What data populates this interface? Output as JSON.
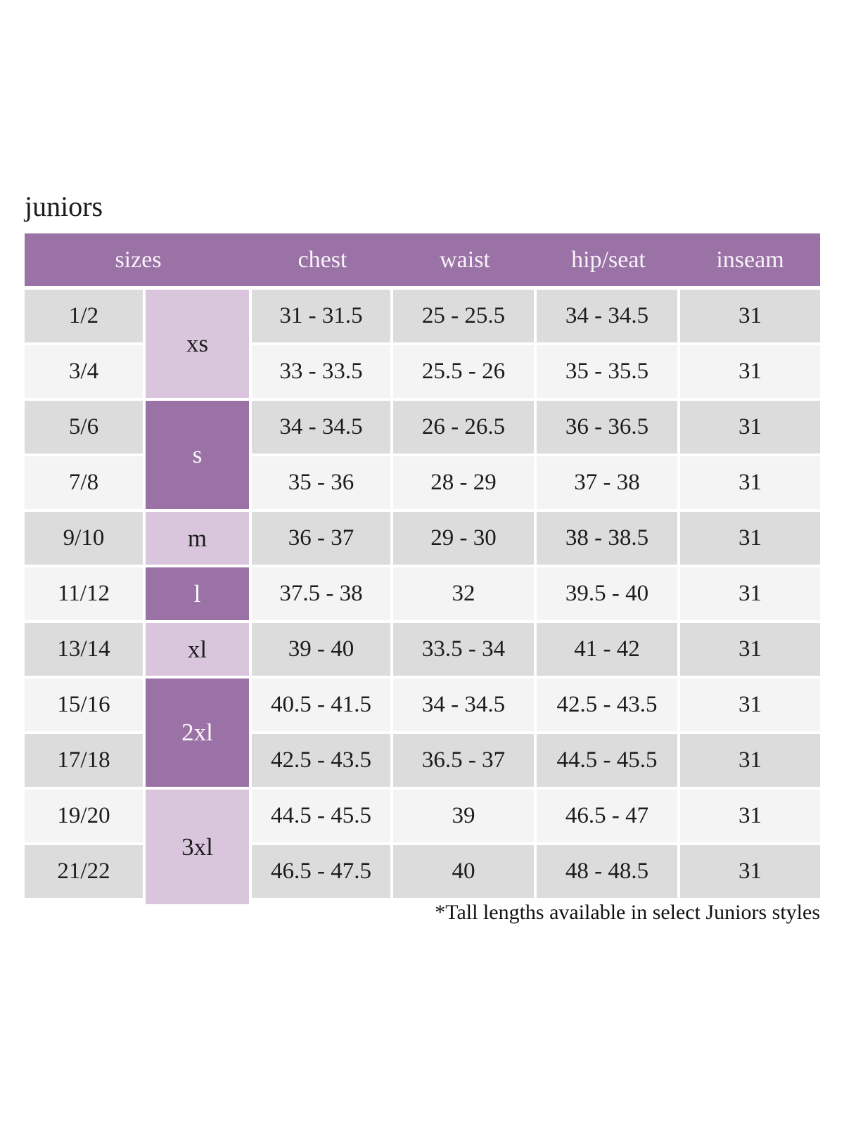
{
  "title": "juniors",
  "footnote": "*Tall lengths available in select Juniors styles",
  "colors": {
    "header_bg": "#9b72a6",
    "header_text": "#f7f3f8",
    "letter_dark_bg": "#9b72a6",
    "letter_light_bg": "#d9c6dc",
    "row_gray": "#dcdcdc",
    "row_light": "#f4f4f4",
    "body_text": "#1c1c1c",
    "gap_white": "#ffffff"
  },
  "chart_data": {
    "type": "table",
    "title": "juniors",
    "headers": [
      "sizes",
      "chest",
      "waist",
      "hip/seat",
      "inseam"
    ],
    "size_groups": [
      {
        "label": "xs",
        "span": 2,
        "variant": "light"
      },
      {
        "label": "s",
        "span": 2,
        "variant": "dark"
      },
      {
        "label": "m",
        "span": 1,
        "variant": "light"
      },
      {
        "label": "l",
        "span": 1,
        "variant": "dark"
      },
      {
        "label": "xl",
        "span": 1,
        "variant": "light"
      },
      {
        "label": "2xl",
        "span": 2,
        "variant": "dark"
      },
      {
        "label": "3xl",
        "span": 2,
        "variant": "light"
      }
    ],
    "rows": [
      {
        "size": "1/2",
        "letter": "xs",
        "chest": "31 - 31.5",
        "waist": "25 - 25.5",
        "hip_seat": "34 - 34.5",
        "inseam": "31"
      },
      {
        "size": "3/4",
        "letter": "xs",
        "chest": "33 - 33.5",
        "waist": "25.5 - 26",
        "hip_seat": "35 - 35.5",
        "inseam": "31"
      },
      {
        "size": "5/6",
        "letter": "s",
        "chest": "34 - 34.5",
        "waist": "26 - 26.5",
        "hip_seat": "36 - 36.5",
        "inseam": "31"
      },
      {
        "size": "7/8",
        "letter": "s",
        "chest": "35 - 36",
        "waist": "28 - 29",
        "hip_seat": "37 - 38",
        "inseam": "31"
      },
      {
        "size": "9/10",
        "letter": "m",
        "chest": "36 - 37",
        "waist": "29 - 30",
        "hip_seat": "38 - 38.5",
        "inseam": "31"
      },
      {
        "size": "11/12",
        "letter": "l",
        "chest": "37.5 - 38",
        "waist": "32",
        "hip_seat": "39.5 - 40",
        "inseam": "31"
      },
      {
        "size": "13/14",
        "letter": "xl",
        "chest": "39 - 40",
        "waist": "33.5 - 34",
        "hip_seat": "41 - 42",
        "inseam": "31"
      },
      {
        "size": "15/16",
        "letter": "2xl",
        "chest": "40.5 - 41.5",
        "waist": "34 - 34.5",
        "hip_seat": "42.5 - 43.5",
        "inseam": "31"
      },
      {
        "size": "17/18",
        "letter": "2xl",
        "chest": "42.5 - 43.5",
        "waist": "36.5 - 37",
        "hip_seat": "44.5 - 45.5",
        "inseam": "31"
      },
      {
        "size": "19/20",
        "letter": "3xl",
        "chest": "44.5 - 45.5",
        "waist": "39",
        "hip_seat": "46.5 - 47",
        "inseam": "31"
      },
      {
        "size": "21/22",
        "letter": "3xl",
        "chest": "46.5 - 47.5",
        "waist": "40",
        "hip_seat": "48 - 48.5",
        "inseam": "31"
      }
    ],
    "footnote": "*Tall lengths available in select Juniors styles"
  }
}
